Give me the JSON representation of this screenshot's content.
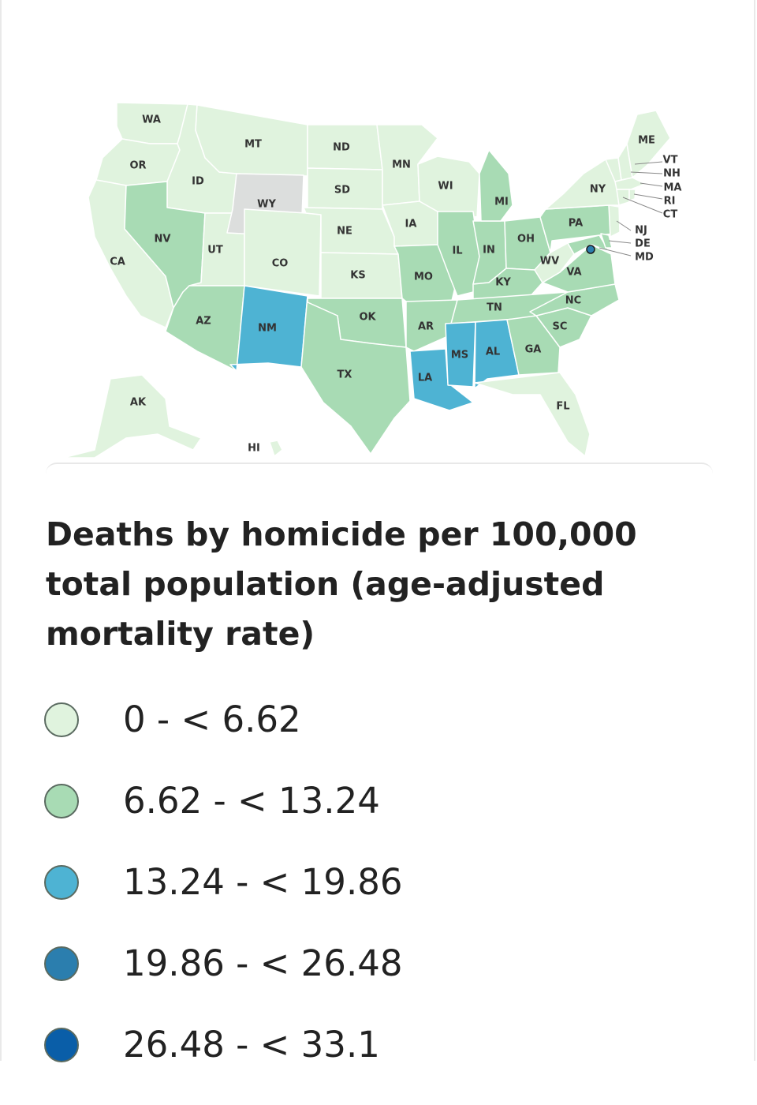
{
  "title": "Deaths by homicide per 100,000 total population (age-adjusted mortality rate)",
  "legend": [
    {
      "label": "0 - < 6.62",
      "color": "#e0f3de"
    },
    {
      "label": "6.62 - < 13.24",
      "color": "#a8dbb4"
    },
    {
      "label": "13.24 - < 19.86",
      "color": "#4eb3d3"
    },
    {
      "label": "19.86 - < 26.48",
      "color": "#2b7eae"
    },
    {
      "label": "26.48 - < 33.1",
      "color": "#0a5ea8"
    }
  ],
  "no_data_color": "#dcdedd",
  "states": {
    "WA": {
      "label": "WA",
      "bin": 0
    },
    "OR": {
      "label": "OR",
      "bin": 0
    },
    "CA": {
      "label": "CA",
      "bin": 0
    },
    "ID": {
      "label": "ID",
      "bin": 0
    },
    "NV": {
      "label": "NV",
      "bin": 1
    },
    "UT": {
      "label": "UT",
      "bin": 0
    },
    "AZ": {
      "label": "AZ",
      "bin": 1
    },
    "MT": {
      "label": "MT",
      "bin": 0
    },
    "WY": {
      "label": "WY",
      "bin": null
    },
    "CO": {
      "label": "CO",
      "bin": 0
    },
    "NM": {
      "label": "NM",
      "bin": 2
    },
    "ND": {
      "label": "ND",
      "bin": 0
    },
    "SD": {
      "label": "SD",
      "bin": 0
    },
    "NE": {
      "label": "NE",
      "bin": 0
    },
    "KS": {
      "label": "KS",
      "bin": 0
    },
    "OK": {
      "label": "OK",
      "bin": 1
    },
    "TX": {
      "label": "TX",
      "bin": 1
    },
    "MN": {
      "label": "MN",
      "bin": 0
    },
    "IA": {
      "label": "IA",
      "bin": 0
    },
    "MO": {
      "label": "MO",
      "bin": 1
    },
    "AR": {
      "label": "AR",
      "bin": 1
    },
    "LA": {
      "label": "LA",
      "bin": 2
    },
    "WI": {
      "label": "WI",
      "bin": 0
    },
    "IL": {
      "label": "IL",
      "bin": 1
    },
    "MI": {
      "label": "MI",
      "bin": 1
    },
    "IN": {
      "label": "IN",
      "bin": 1
    },
    "OH": {
      "label": "OH",
      "bin": 1
    },
    "KY": {
      "label": "KY",
      "bin": 1
    },
    "TN": {
      "label": "TN",
      "bin": 1
    },
    "MS": {
      "label": "MS",
      "bin": 2
    },
    "AL": {
      "label": "AL",
      "bin": 2
    },
    "GA": {
      "label": "GA",
      "bin": 1
    },
    "FL": {
      "label": "FL",
      "bin": 0
    },
    "SC": {
      "label": "SC",
      "bin": 1
    },
    "NC": {
      "label": "NC",
      "bin": 1
    },
    "VA": {
      "label": "VA",
      "bin": 1
    },
    "WV": {
      "label": "WV",
      "bin": 0
    },
    "PA": {
      "label": "PA",
      "bin": 1
    },
    "NY": {
      "label": "NY",
      "bin": 0
    },
    "ME": {
      "label": "ME",
      "bin": 0
    },
    "VT": {
      "label": "VT",
      "bin": 0
    },
    "NH": {
      "label": "NH",
      "bin": 0
    },
    "MA": {
      "label": "MA",
      "bin": 0
    },
    "RI": {
      "label": "RI",
      "bin": 0
    },
    "CT": {
      "label": "CT",
      "bin": 0
    },
    "NJ": {
      "label": "NJ",
      "bin": 0
    },
    "DE": {
      "label": "DE",
      "bin": 1
    },
    "MD": {
      "label": "MD",
      "bin": 1
    },
    "AK": {
      "label": "AK",
      "bin": 0
    },
    "HI": {
      "label": "HI",
      "bin": 0
    },
    "DC": {
      "label": "",
      "bin": 3
    }
  }
}
